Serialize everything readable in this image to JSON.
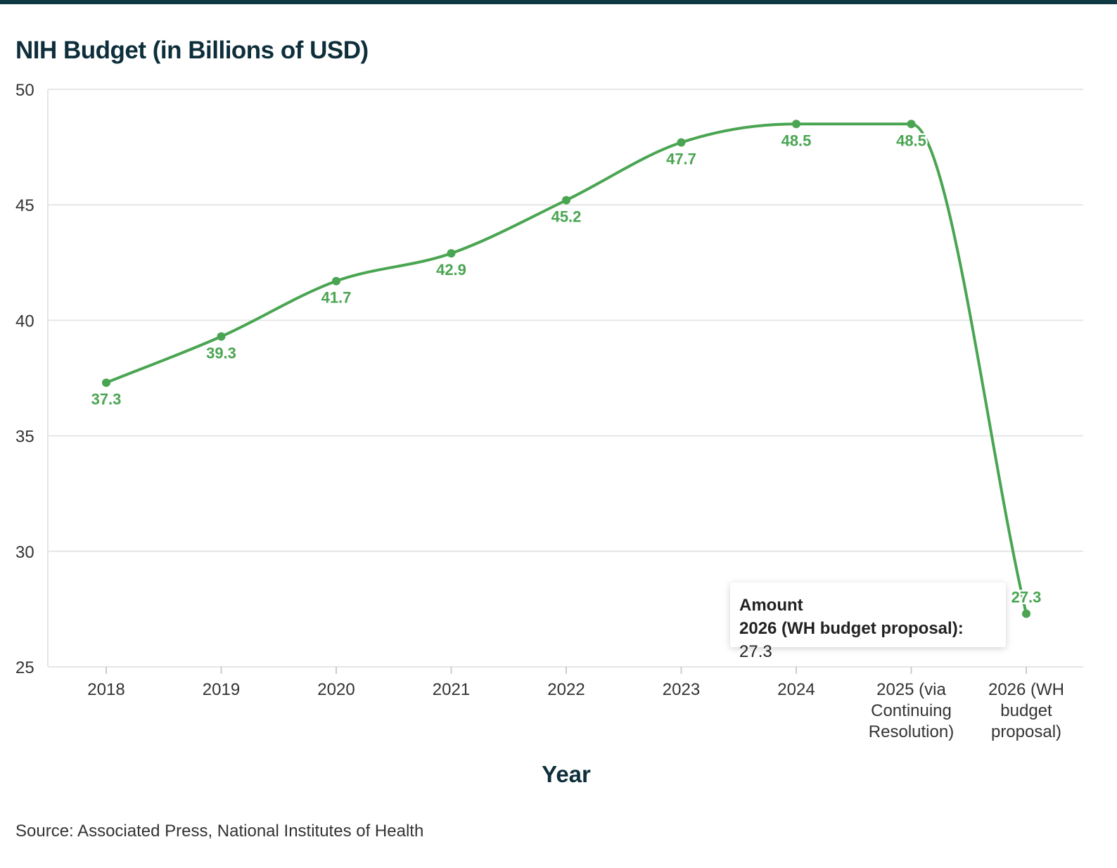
{
  "chart_data": {
    "type": "line",
    "title": "NIH Budget (in Billions of USD)",
    "xlabel": "Year",
    "ylabel": "",
    "ylim": [
      25,
      50
    ],
    "yticks": [
      "25",
      "30",
      "35",
      "40",
      "45",
      "50"
    ],
    "categories": [
      [
        "2018"
      ],
      [
        "2019"
      ],
      [
        "2020"
      ],
      [
        "2021"
      ],
      [
        "2022"
      ],
      [
        "2023"
      ],
      [
        "2024"
      ],
      [
        "2025 (via",
        "Continuing",
        "Resolution)"
      ],
      [
        "2026 (WH",
        "budget",
        "proposal)"
      ]
    ],
    "series": [
      {
        "name": "Amount",
        "color": "#4aa552",
        "values": [
          37.3,
          39.3,
          41.7,
          42.9,
          45.2,
          47.7,
          48.5,
          48.5,
          27.3
        ]
      }
    ],
    "data_labels": [
      "37.3",
      "39.3",
      "41.7",
      "42.9",
      "45.2",
      "47.7",
      "48.5",
      "48.5",
      "27.3"
    ],
    "grid": true,
    "source": "Source: Associated Press, National Institutes of Health"
  },
  "tooltip": {
    "series_name": "Amount",
    "category": "2026 (WH budget proposal):",
    "value": "27.3"
  }
}
